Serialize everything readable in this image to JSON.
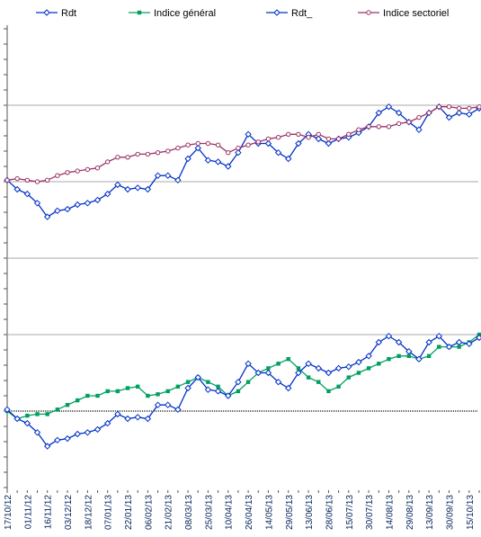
{
  "chart_data": {
    "type": "line",
    "categories": [
      "17/10/12",
      null,
      "01/11/12",
      null,
      "16/11/12",
      null,
      "03/12/12",
      null,
      "18/12/12",
      null,
      "07/01/13",
      null,
      "22/01/13",
      null,
      "06/02/13",
      null,
      "21/02/13",
      null,
      "08/03/13",
      null,
      "25/03/13",
      null,
      "10/04/13",
      null,
      "26/04/13",
      null,
      "14/05/13",
      null,
      "29/05/13",
      null,
      "13/06/13",
      null,
      "28/06/13",
      null,
      "15/07/13",
      null,
      "30/07/13",
      null,
      "14/08/13",
      null,
      "29/08/13",
      null,
      "13/09/13",
      null,
      "30/09/13",
      null,
      "15/10/13",
      null
    ],
    "series": [
      {
        "name": "Rdt",
        "color": "#0030c8",
        "marker": "diamond",
        "values": [
          15.1,
          14.5,
          14.2,
          13.6,
          12.7,
          13.1,
          13.2,
          13.5,
          13.6,
          13.8,
          14.2,
          14.8,
          14.5,
          14.6,
          14.5,
          15.4,
          15.4,
          15.1,
          16.5,
          17.2,
          16.4,
          16.3,
          16.0,
          16.9,
          18.1,
          17.5,
          17.5,
          16.9,
          16.5,
          17.5,
          18.1,
          17.8,
          17.5,
          17.8,
          17.9,
          18.2,
          18.6,
          19.5,
          19.9,
          19.5,
          18.9,
          18.4,
          19.5,
          19.9,
          19.2,
          19.5,
          19.4,
          19.8
        ]
      },
      {
        "name": "Indice général",
        "color": "#00a060",
        "marker": "square",
        "values": [
          0,
          -0.5,
          -0.3,
          -0.2,
          -0.2,
          0.1,
          0.4,
          0.7,
          1.0,
          1.0,
          1.3,
          1.3,
          1.5,
          1.6,
          1.0,
          1.1,
          1.3,
          1.6,
          1.9,
          2.2,
          1.9,
          1.6,
          1.0,
          1.3,
          1.9,
          2.5,
          2.8,
          3.1,
          3.4,
          2.8,
          2.2,
          1.9,
          1.3,
          1.6,
          2.2,
          2.5,
          2.8,
          3.1,
          3.4,
          3.6,
          3.6,
          3.4,
          3.6,
          4.2,
          4.2,
          4.2,
          4.5,
          5.0
        ]
      },
      {
        "name": "Rdt_",
        "color": "#0030c8",
        "marker": "diamond",
        "values": [
          0.1,
          -0.5,
          -0.8,
          -1.4,
          -2.3,
          -1.9,
          -1.8,
          -1.5,
          -1.4,
          -1.2,
          -0.8,
          -0.2,
          -0.5,
          -0.4,
          -0.5,
          0.4,
          0.4,
          0.1,
          1.5,
          2.2,
          1.4,
          1.3,
          1.0,
          1.9,
          3.1,
          2.5,
          2.5,
          1.9,
          1.5,
          2.5,
          3.1,
          2.8,
          2.5,
          2.8,
          2.9,
          3.2,
          3.6,
          4.5,
          4.9,
          4.5,
          3.9,
          3.4,
          4.5,
          4.9,
          4.2,
          4.5,
          4.4,
          4.8
        ]
      },
      {
        "name": "Indice sectoriel",
        "color": "#993366",
        "marker": "circle",
        "values": [
          15.1,
          15.2,
          15.1,
          15.0,
          15.1,
          15.4,
          15.6,
          15.7,
          15.8,
          15.9,
          16.3,
          16.6,
          16.6,
          16.8,
          16.8,
          16.9,
          17.0,
          17.2,
          17.4,
          17.5,
          17.5,
          17.4,
          16.9,
          17.2,
          17.4,
          17.6,
          17.8,
          17.9,
          18.1,
          18.1,
          17.9,
          18.1,
          17.8,
          17.8,
          18.1,
          18.4,
          18.6,
          18.6,
          18.6,
          18.8,
          18.9,
          19.2,
          19.5,
          19.9,
          19.9,
          19.8,
          19.8,
          19.9
        ]
      }
    ],
    "ylim": [
      -5,
      25
    ],
    "yticks": [
      0,
      5,
      10,
      15,
      20
    ],
    "grid": true,
    "legend": "top"
  }
}
